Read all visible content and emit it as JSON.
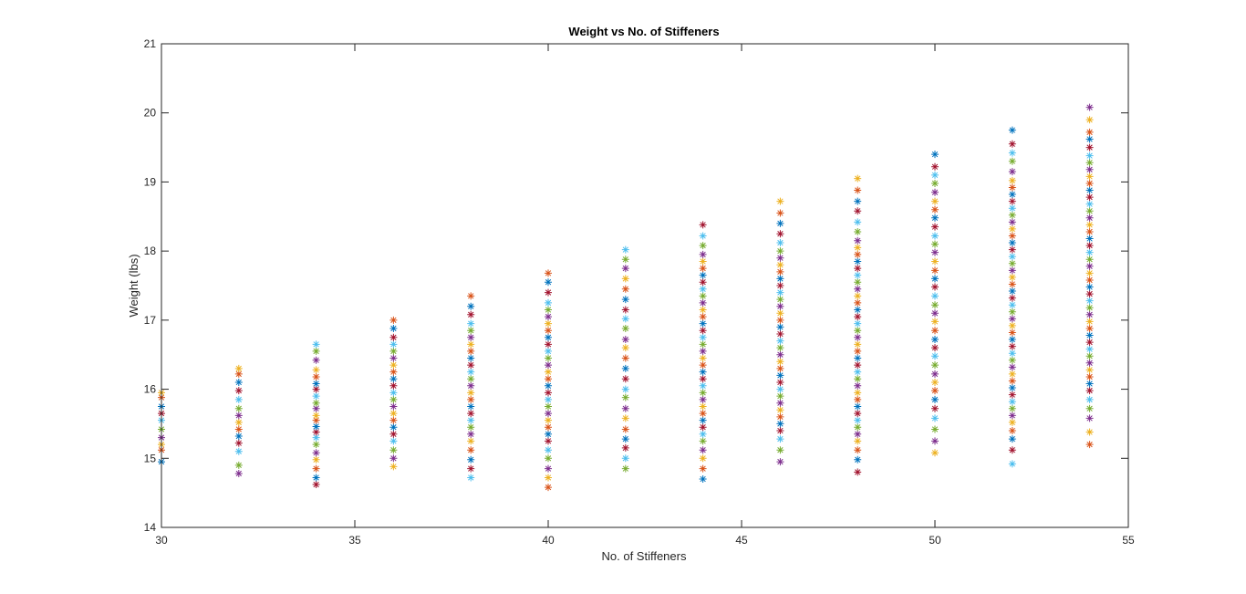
{
  "chart_data": {
    "type": "scatter",
    "title": "Weight vs No. of Stiffeners",
    "xlabel": "No. of Stiffeners",
    "ylabel": "Weight (lbs)",
    "xlim": [
      30,
      55
    ],
    "ylim": [
      14,
      21
    ],
    "xticks": [
      "30",
      "35",
      "40",
      "45",
      "50",
      "55"
    ],
    "yticks": [
      "14",
      "15",
      "16",
      "17",
      "18",
      "19",
      "20",
      "21"
    ],
    "grid": false,
    "marker": "asterisk",
    "colors": [
      "#0072BD",
      "#D95319",
      "#EDB120",
      "#7E2F8E",
      "#77AC30",
      "#4DBEEE",
      "#A2142F"
    ],
    "groups": [
      {
        "x": 30,
        "y": [
          14.95,
          15.12,
          15.2,
          15.3,
          15.42,
          15.55,
          15.65,
          15.75,
          15.88,
          15.95
        ]
      },
      {
        "x": 32,
        "y": [
          14.78,
          14.9,
          15.1,
          15.22,
          15.32,
          15.42,
          15.52,
          15.62,
          15.72,
          15.85,
          15.98,
          16.1,
          16.22,
          16.3
        ]
      },
      {
        "x": 34,
        "y": [
          14.62,
          14.72,
          14.85,
          14.98,
          15.08,
          15.2,
          15.3,
          15.38,
          15.46,
          15.55,
          15.62,
          15.72,
          15.8,
          15.9,
          16.0,
          16.08,
          16.18,
          16.28,
          16.42,
          16.55,
          16.65
        ]
      },
      {
        "x": 36,
        "y": [
          14.88,
          15.0,
          15.12,
          15.25,
          15.35,
          15.45,
          15.55,
          15.65,
          15.75,
          15.85,
          15.95,
          16.05,
          16.15,
          16.25,
          16.35,
          16.45,
          16.55,
          16.65,
          16.75,
          16.88,
          17.0
        ]
      },
      {
        "x": 38,
        "y": [
          14.72,
          14.85,
          14.98,
          15.12,
          15.25,
          15.35,
          15.45,
          15.55,
          15.65,
          15.75,
          15.85,
          15.95,
          16.05,
          16.15,
          16.25,
          16.35,
          16.45,
          16.55,
          16.65,
          16.75,
          16.85,
          16.95,
          17.08,
          17.2,
          17.35
        ]
      },
      {
        "x": 40,
        "y": [
          14.58,
          14.72,
          14.85,
          15.0,
          15.12,
          15.25,
          15.35,
          15.45,
          15.55,
          15.65,
          15.75,
          15.85,
          15.95,
          16.05,
          16.15,
          16.25,
          16.35,
          16.45,
          16.55,
          16.65,
          16.75,
          16.85,
          16.95,
          17.05,
          17.15,
          17.25,
          17.4,
          17.55,
          17.68
        ]
      },
      {
        "x": 42,
        "y": [
          14.85,
          15.0,
          15.15,
          15.28,
          15.42,
          15.58,
          15.72,
          15.88,
          16.0,
          16.15,
          16.3,
          16.45,
          16.6,
          16.72,
          16.88,
          17.02,
          17.15,
          17.3,
          17.45,
          17.6,
          17.75,
          17.88,
          18.02
        ]
      },
      {
        "x": 44,
        "y": [
          14.7,
          14.85,
          15.0,
          15.12,
          15.25,
          15.35,
          15.45,
          15.55,
          15.65,
          15.75,
          15.85,
          15.95,
          16.05,
          16.15,
          16.25,
          16.35,
          16.45,
          16.55,
          16.65,
          16.75,
          16.85,
          16.95,
          17.05,
          17.15,
          17.25,
          17.35,
          17.45,
          17.55,
          17.65,
          17.75,
          17.85,
          17.95,
          18.08,
          18.22,
          18.38
        ]
      },
      {
        "x": 46,
        "y": [
          14.95,
          15.12,
          15.28,
          15.4,
          15.5,
          15.6,
          15.7,
          15.8,
          15.9,
          16.0,
          16.1,
          16.2,
          16.3,
          16.4,
          16.5,
          16.6,
          16.7,
          16.8,
          16.9,
          17.0,
          17.1,
          17.2,
          17.3,
          17.4,
          17.5,
          17.6,
          17.7,
          17.8,
          17.9,
          18.0,
          18.12,
          18.25,
          18.4,
          18.55,
          18.72
        ]
      },
      {
        "x": 48,
        "y": [
          14.8,
          14.98,
          15.12,
          15.25,
          15.35,
          15.45,
          15.55,
          15.65,
          15.75,
          15.85,
          15.95,
          16.05,
          16.15,
          16.25,
          16.35,
          16.45,
          16.55,
          16.65,
          16.75,
          16.85,
          16.95,
          17.05,
          17.15,
          17.25,
          17.35,
          17.45,
          17.55,
          17.65,
          17.75,
          17.85,
          17.95,
          18.05,
          18.15,
          18.28,
          18.42,
          18.58,
          18.72,
          18.88,
          19.05
        ]
      },
      {
        "x": 50,
        "y": [
          15.08,
          15.25,
          15.42,
          15.58,
          15.72,
          15.85,
          15.98,
          16.1,
          16.22,
          16.35,
          16.48,
          16.6,
          16.72,
          16.85,
          16.98,
          17.1,
          17.22,
          17.35,
          17.48,
          17.6,
          17.72,
          17.85,
          17.98,
          18.1,
          18.22,
          18.35,
          18.48,
          18.6,
          18.72,
          18.85,
          18.98,
          19.1,
          19.22,
          19.4
        ]
      },
      {
        "x": 52,
        "y": [
          14.92,
          15.12,
          15.28,
          15.4,
          15.52,
          15.62,
          15.72,
          15.82,
          15.92,
          16.02,
          16.12,
          16.22,
          16.32,
          16.42,
          16.52,
          16.62,
          16.72,
          16.82,
          16.92,
          17.02,
          17.12,
          17.22,
          17.32,
          17.42,
          17.52,
          17.62,
          17.72,
          17.82,
          17.92,
          18.02,
          18.12,
          18.22,
          18.32,
          18.42,
          18.52,
          18.62,
          18.72,
          18.82,
          18.92,
          19.02,
          19.15,
          19.3,
          19.42,
          19.55,
          19.75
        ]
      },
      {
        "x": 54,
        "y": [
          15.2,
          15.38,
          15.58,
          15.72,
          15.85,
          15.98,
          16.08,
          16.18,
          16.28,
          16.38,
          16.48,
          16.58,
          16.68,
          16.78,
          16.88,
          16.98,
          17.08,
          17.18,
          17.28,
          17.38,
          17.48,
          17.58,
          17.68,
          17.78,
          17.88,
          17.98,
          18.08,
          18.18,
          18.28,
          18.38,
          18.48,
          18.58,
          18.68,
          18.78,
          18.88,
          18.98,
          19.08,
          19.18,
          19.28,
          19.38,
          19.5,
          19.62,
          19.72,
          19.9,
          20.08
        ]
      }
    ]
  }
}
